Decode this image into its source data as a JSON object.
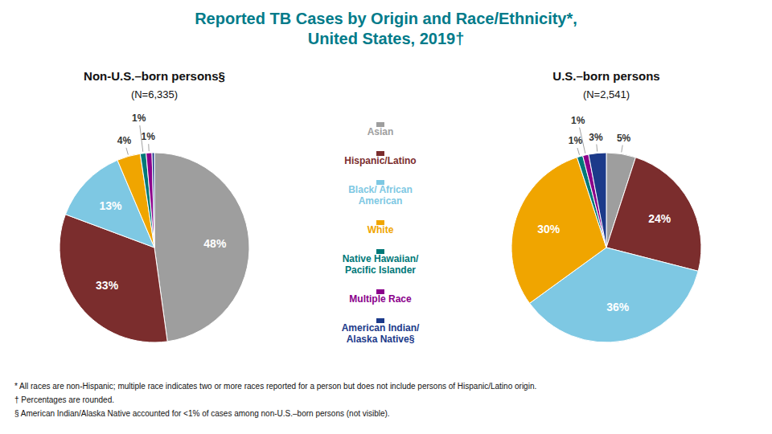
{
  "chart_data": {
    "type": "pie",
    "title": "Reported TB Cases by Origin and Race/Ethnicity*,\nUnited States, 2019†",
    "title_color": "#007B8A",
    "categories": [
      "Asian",
      "Hispanic/Latino",
      "Black/ African\nAmerican",
      "White",
      "Native Hawaiian/\nPacific Islander",
      "Multiple  Race",
      "American Indian/\nAlaska Native§"
    ],
    "colors": [
      "#9E9E9E",
      "#7B2D2D",
      "#7EC8E3",
      "#F0A500",
      "#007878",
      "#8B008B",
      "#1C3A8A"
    ],
    "series": [
      {
        "name": "Non-U.S.–born persons§",
        "subtitle": "(N=6,335)",
        "values": [
          48,
          33,
          13,
          4,
          1,
          1,
          0.4
        ],
        "value_labels": [
          "48%",
          "33%",
          "13%",
          "4%",
          "1%",
          "1%",
          null
        ]
      },
      {
        "name": "U.S.–born persons",
        "subtitle": "(N=2,541)",
        "values": [
          5,
          24,
          36,
          30,
          1,
          1,
          3
        ],
        "value_labels": [
          "5%",
          "24%",
          "36%",
          "30%",
          "1%",
          "1%",
          "3%"
        ]
      }
    ],
    "data_labels": true,
    "legend": "center",
    "annotations": [
      "*  All races are non-Hispanic; multiple race indicates two or more races reported for a person but does not include persons of Hispanic/Latino origin.",
      "†  Percentages are rounded.",
      "§  American Indian/Alaska Native accounted for <1% of cases among non-U.S.–born persons (not visible)."
    ]
  }
}
